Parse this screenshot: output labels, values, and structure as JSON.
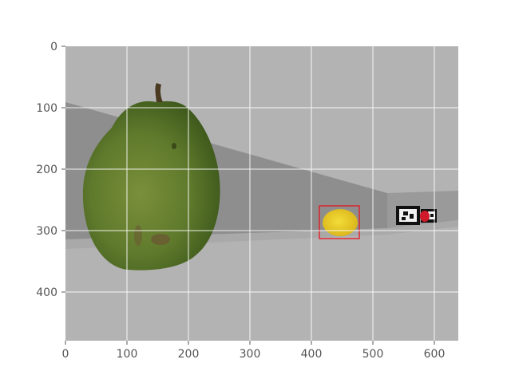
{
  "figure": {
    "x_ticks": [
      "0",
      "100",
      "200",
      "300",
      "400",
      "500",
      "600"
    ],
    "y_ticks": [
      "0",
      "100",
      "200",
      "300",
      "400"
    ],
    "grid": "on",
    "colors": {
      "background": "#ffffff",
      "grid": "#ffffff",
      "bbox": "#e8141e"
    }
  },
  "scene": {
    "objects": [
      "pear",
      "lemon (boxed)",
      "fiducial marker",
      "red object"
    ]
  }
}
